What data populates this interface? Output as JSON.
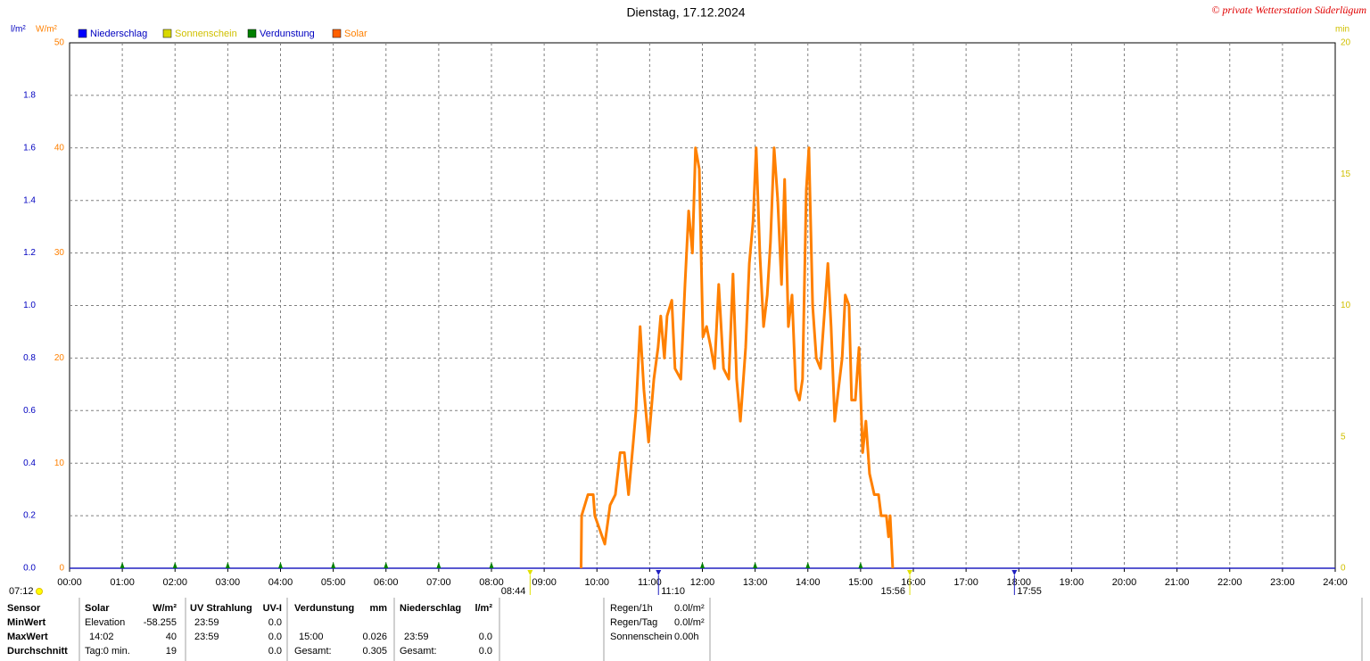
{
  "chart_data": {
    "type": "line",
    "title": "Dienstag, 17.12.2024",
    "copyright": "© private Wetterstation Süderlügum",
    "y_label": "l/m²",
    "y3_label": "W/m²",
    "y2_label": "min",
    "xlim": [
      0,
      24
    ],
    "xticks": [
      {
        "value": 0,
        "label": "00:00"
      },
      {
        "value": 1,
        "label": "01:00"
      },
      {
        "value": 2,
        "label": "02:00"
      },
      {
        "value": 3,
        "label": "03:00"
      },
      {
        "value": 4,
        "label": "04:00"
      },
      {
        "value": 5,
        "label": "05:00"
      },
      {
        "value": 6,
        "label": "06:00"
      },
      {
        "value": 7,
        "label": "07:00"
      },
      {
        "value": 8,
        "label": "08:00"
      },
      {
        "value": 9,
        "label": "09:00"
      },
      {
        "value": 10,
        "label": "10:00"
      },
      {
        "value": 11,
        "label": "11:00"
      },
      {
        "value": 12,
        "label": "12:00"
      },
      {
        "value": 13,
        "label": "13:00"
      },
      {
        "value": 14,
        "label": "14:00"
      },
      {
        "value": 15,
        "label": "15:00"
      },
      {
        "value": 16,
        "label": "16:00"
      },
      {
        "value": 17,
        "label": "17:00"
      },
      {
        "value": 18,
        "label": "18:00"
      },
      {
        "value": 19,
        "label": "19:00"
      },
      {
        "value": 20,
        "label": "20:00"
      },
      {
        "value": 21,
        "label": "21:00"
      },
      {
        "value": 22,
        "label": "22:00"
      },
      {
        "value": 23,
        "label": "23:00"
      },
      {
        "value": 24,
        "label": "24:00"
      }
    ],
    "ylim": [
      0,
      2
    ],
    "yticks": [
      {
        "value": 0,
        "label": "0.0"
      },
      0.2,
      0.4,
      0.6,
      0.8,
      {
        "value": 1,
        "label": "1.0"
      },
      1.2,
      1.4,
      1.6,
      1.8
    ],
    "y3lim": [
      0,
      50
    ],
    "y3ticks": [
      0,
      10,
      20,
      30,
      40,
      50
    ],
    "y2lim": [
      0,
      20
    ],
    "y2ticks": [
      0,
      5,
      10,
      15,
      20
    ],
    "grid": true,
    "series": [
      {
        "name": "Niederschlag",
        "color": "#2020c0",
        "legend_color": "#0000ff",
        "legend_text_color": "#0000c0",
        "x": [
          0,
          24
        ],
        "values": [
          0,
          0
        ]
      },
      {
        "name": "Sonnenschein",
        "color": "#e0e000",
        "legend_color": "#d8d800",
        "legend_text_color": "#d0c000"
      },
      {
        "name": "Verdunstung",
        "color": "#008000",
        "legend_color": "#008000",
        "legend_text_color": "#0000c0",
        "x": [
          1,
          2,
          3,
          4,
          5,
          6,
          7,
          8,
          12,
          13,
          14,
          15
        ],
        "values": [
          0,
          0,
          0,
          0,
          0,
          0,
          0,
          0,
          0,
          0,
          0,
          0
        ]
      },
      {
        "name": "Solar",
        "color": "#ff8000",
        "legend_color": "#ff6000",
        "legend_text_color": "#ff8000",
        "axis": "y3",
        "x": [
          9.7,
          9.71,
          9.83,
          9.93,
          9.96,
          10.15,
          10.25,
          10.35,
          10.44,
          10.52,
          10.6,
          10.69,
          10.74,
          10.82,
          10.89,
          10.98,
          11.08,
          11.16,
          11.21,
          11.28,
          11.33,
          11.42,
          11.48,
          11.59,
          11.67,
          11.74,
          11.81,
          11.87,
          11.94,
          12.01,
          12.08,
          12.16,
          12.23,
          12.31,
          12.4,
          12.5,
          12.58,
          12.65,
          12.72,
          12.82,
          12.89,
          12.96,
          13.02,
          13.09,
          13.16,
          13.23,
          13.29,
          13.36,
          13.43,
          13.5,
          13.56,
          13.63,
          13.7,
          13.77,
          13.84,
          13.9,
          13.97,
          14.02,
          14.09,
          14.16,
          14.24,
          14.31,
          14.38,
          14.44,
          14.51,
          14.58,
          14.65,
          14.71,
          14.78,
          14.83,
          14.9,
          14.97,
          15.04,
          15.1,
          15.17,
          15.26,
          15.34,
          15.39,
          15.49,
          15.53,
          15.56,
          15.61
        ],
        "values": [
          0,
          5,
          7,
          7,
          5,
          2.3,
          6,
          7,
          11,
          11,
          7,
          12,
          15,
          23,
          17,
          12,
          18,
          21,
          24,
          20,
          24,
          25.5,
          19,
          18,
          27,
          34,
          30,
          40,
          38,
          22,
          23,
          21,
          19,
          27,
          19,
          18,
          28,
          18,
          14,
          21,
          29,
          33,
          40,
          30,
          23,
          26,
          31,
          40,
          35,
          27,
          37,
          23,
          26,
          17,
          16,
          18,
          36,
          40,
          25,
          20,
          19,
          24,
          29,
          23,
          14,
          17,
          20,
          26,
          25,
          16,
          16,
          21,
          11,
          14,
          9,
          7,
          7,
          5,
          5,
          3,
          5,
          0
        ]
      }
    ],
    "x_markers": [
      {
        "value": 8.733,
        "label": "08:44",
        "color": "#e0e000"
      },
      {
        "value": 11.167,
        "label": "11:10",
        "color": "#2020c0"
      },
      {
        "value": 15.933,
        "label": "15:56",
        "color": "#e0e000"
      },
      {
        "value": 17.917,
        "label": "17:55",
        "color": "#2020c0"
      }
    ],
    "dawn_label": "07:12"
  },
  "table": {
    "row_labels": [
      "Sensor",
      "MinWert",
      "MaxWert",
      "Durchschnitt"
    ],
    "groups": [
      {
        "name": "Solar",
        "unit": "W/m²",
        "rows": [
          [
            "Elevation",
            "-58.255"
          ],
          [
            "14:02",
            "40"
          ],
          [
            "Tag:0 min.",
            "19"
          ]
        ]
      },
      {
        "name": "UV Strahlung",
        "unit": "UV-I",
        "rows": [
          [
            "23:59",
            "0.0"
          ],
          [
            "23:59",
            "0.0"
          ],
          [
            null,
            "0.0"
          ]
        ]
      },
      {
        "name": "Verdunstung",
        "unit": "mm",
        "rows": [
          [
            null,
            null
          ],
          [
            "15:00",
            "0.026"
          ],
          [
            "Gesamt:",
            "0.305"
          ]
        ]
      },
      {
        "name": "Niederschlag",
        "unit": "l/m²",
        "rows": [
          [
            null,
            null
          ],
          [
            "23:59",
            "0.0"
          ],
          [
            "Gesamt:",
            "0.0"
          ]
        ]
      }
    ],
    "summary": [
      [
        "Regen/1h",
        "0.0l/m²"
      ],
      [
        "Regen/Tag",
        "0.0l/m²"
      ],
      [
        "Sonnenschein",
        "0.00h"
      ]
    ]
  }
}
